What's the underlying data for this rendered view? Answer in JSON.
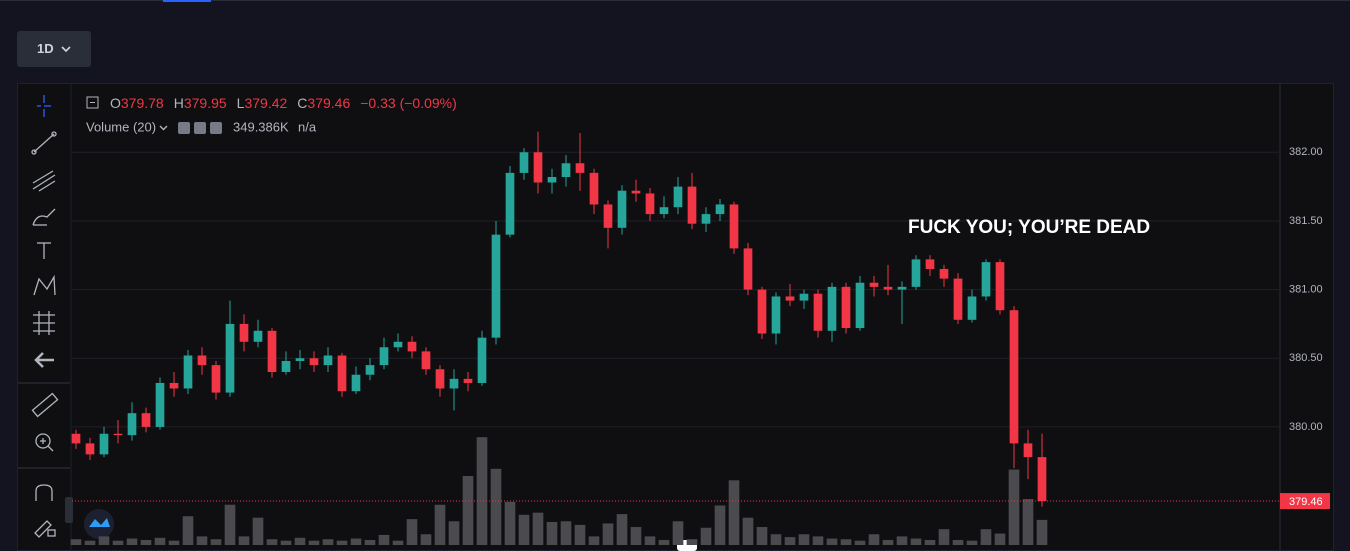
{
  "toolbar": {
    "timeframe": "1D"
  },
  "legend": {
    "o_label": "O",
    "o": "379.78",
    "h_label": "H",
    "h": "379.95",
    "l_label": "L",
    "l": "379.42",
    "c_label": "C",
    "c": "379.46",
    "change": "−0.33 (−0.09%)",
    "volume_name": "Volume (20)",
    "volume_value": "349.386K",
    "volume_ma": "n/a"
  },
  "chart_data": {
    "type": "candlestick",
    "annotation": "FUCK YOU; YOU’RE DEAD",
    "up_color": "#26a69a",
    "down_color": "#f23645",
    "volume_color": "#4a4a4f",
    "open": [
      379.95,
      379.88,
      379.8,
      379.95,
      379.94,
      380.1,
      380.0,
      380.32,
      380.28,
      380.52,
      380.45,
      380.25,
      380.75,
      380.62,
      380.7,
      380.4,
      380.48,
      380.5,
      380.45,
      380.52,
      380.26,
      380.38,
      380.45,
      380.58,
      380.62,
      380.55,
      380.42,
      380.28,
      380.35,
      380.32,
      380.65,
      381.4,
      381.85,
      382.0,
      381.78,
      381.82,
      381.92,
      381.85,
      381.62,
      381.45,
      381.72,
      381.7,
      381.55,
      381.6,
      381.75,
      381.48,
      381.55,
      381.62,
      381.3,
      381.0,
      380.68,
      380.95,
      380.92,
      380.97,
      380.7,
      381.02,
      380.72,
      381.05,
      381.02,
      381.0,
      381.02,
      381.22,
      381.15,
      381.08,
      380.78,
      380.95,
      381.2,
      380.85,
      379.88,
      379.78
    ],
    "high": [
      379.98,
      379.92,
      380.0,
      380.05,
      380.18,
      380.14,
      380.36,
      380.4,
      380.56,
      380.58,
      380.48,
      380.92,
      380.82,
      380.78,
      380.72,
      380.55,
      380.56,
      380.55,
      380.58,
      380.54,
      380.44,
      380.5,
      380.65,
      380.68,
      380.66,
      380.58,
      380.45,
      380.42,
      380.4,
      380.7,
      381.5,
      381.9,
      382.03,
      382.15,
      381.88,
      381.98,
      382.14,
      381.88,
      381.65,
      381.76,
      381.8,
      381.74,
      381.68,
      381.82,
      381.85,
      381.6,
      381.66,
      381.64,
      381.34,
      381.02,
      380.98,
      381.04,
      381.0,
      381.0,
      381.05,
      381.05,
      381.1,
      381.1,
      381.18,
      381.06,
      381.25,
      381.25,
      381.18,
      381.12,
      381.0,
      381.22,
      381.22,
      380.88,
      379.98,
      379.95
    ],
    "low": [
      379.84,
      379.76,
      379.78,
      379.88,
      379.9,
      379.96,
      379.98,
      380.22,
      380.24,
      380.38,
      380.2,
      380.22,
      380.55,
      380.58,
      380.36,
      380.38,
      380.42,
      380.4,
      380.4,
      380.22,
      380.24,
      380.34,
      380.42,
      380.55,
      380.5,
      380.38,
      380.22,
      380.12,
      380.26,
      380.3,
      380.6,
      381.38,
      381.8,
      381.7,
      381.7,
      381.75,
      381.72,
      381.55,
      381.3,
      381.4,
      381.64,
      381.5,
      381.52,
      381.55,
      381.44,
      381.42,
      381.5,
      381.26,
      380.96,
      380.64,
      380.6,
      380.88,
      380.86,
      380.65,
      380.62,
      380.68,
      380.7,
      380.95,
      380.96,
      380.75,
      381.0,
      381.1,
      381.02,
      380.75,
      380.76,
      380.92,
      380.82,
      379.7,
      379.62,
      379.42
    ],
    "close": [
      379.88,
      379.8,
      379.95,
      379.94,
      380.1,
      380.0,
      380.32,
      380.28,
      380.52,
      380.45,
      380.25,
      380.75,
      380.62,
      380.7,
      380.4,
      380.48,
      380.5,
      380.45,
      380.52,
      380.26,
      380.38,
      380.45,
      380.58,
      380.62,
      380.55,
      380.42,
      380.28,
      380.35,
      380.32,
      380.65,
      381.4,
      381.85,
      382.0,
      381.78,
      381.82,
      381.92,
      381.85,
      381.62,
      381.45,
      381.72,
      381.7,
      381.55,
      381.6,
      381.75,
      381.48,
      381.55,
      381.62,
      381.3,
      381.0,
      380.68,
      380.95,
      380.92,
      380.97,
      380.7,
      381.02,
      380.72,
      381.05,
      381.02,
      381.0,
      381.02,
      381.22,
      381.15,
      381.08,
      380.78,
      380.95,
      381.2,
      380.85,
      379.88,
      379.78,
      379.46
    ],
    "volume": [
      80,
      60,
      120,
      60,
      90,
      70,
      100,
      60,
      400,
      120,
      80,
      560,
      120,
      380,
      80,
      60,
      100,
      60,
      80,
      60,
      90,
      70,
      140,
      60,
      360,
      150,
      560,
      330,
      960,
      1500,
      1060,
      600,
      420,
      450,
      320,
      330,
      280,
      120,
      300,
      430,
      250,
      120,
      70,
      330,
      80,
      240,
      550,
      900,
      380,
      250,
      150,
      110,
      150,
      120,
      90,
      80,
      60,
      150,
      70,
      120,
      90,
      70,
      220,
      70,
      60,
      220,
      160,
      1050,
      640,
      349.386
    ],
    "ylim": [
      379.14,
      382.49
    ],
    "yticks": [
      {
        "value": 380,
        "label": "380.00"
      },
      {
        "value": 380.5,
        "label": "380.50"
      },
      {
        "value": 381,
        "label": "381.00"
      },
      {
        "value": 381.5,
        "label": "381.50"
      },
      {
        "value": 382,
        "label": "382.00"
      }
    ],
    "y2lim": [
      0,
      6400
    ],
    "grid": true
  }
}
